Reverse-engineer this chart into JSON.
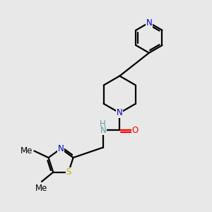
{
  "background_color": "#e8e8e8",
  "line_color": "#000000",
  "atom_colors": {
    "N": "#0000cc",
    "O": "#ff0000",
    "S": "#ccaa00",
    "C": "#000000",
    "H": "#5f9ea0"
  },
  "line_width": 1.6,
  "font_size": 8.5,
  "figsize": [
    3.0,
    3.0
  ],
  "dpi": 100
}
